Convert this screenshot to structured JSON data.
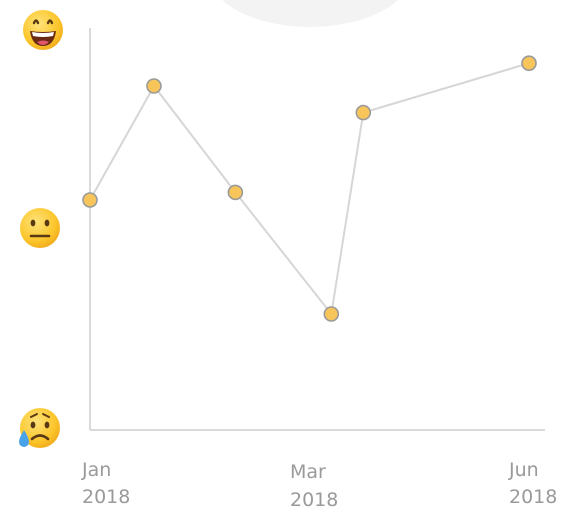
{
  "chart_data": {
    "type": "line",
    "title": "",
    "xlabel": "",
    "ylabel": "",
    "y_scale": "mood",
    "ylim": [
      0,
      1
    ],
    "y_ticks": [
      {
        "value": 1.0,
        "icon": "grinning-face-icon"
      },
      {
        "value": 0.5,
        "icon": "neutral-face-icon"
      },
      {
        "value": 0.0,
        "icon": "sad-sweat-face-icon"
      }
    ],
    "x_ticks": [
      {
        "date": "2018-01-01",
        "month": "Jan",
        "year": "2018"
      },
      {
        "date": "2018-03-01",
        "month": "Mar",
        "year": "2018"
      },
      {
        "date": "2018-06-01",
        "month": "Jun",
        "year": "2018"
      }
    ],
    "xlim": [
      "2018-01-01",
      "2018-06-01"
    ],
    "points": [
      {
        "x": "2018-01-01",
        "y": 0.6
      },
      {
        "x": "2018-01-23",
        "y": 0.9
      },
      {
        "x": "2018-02-20",
        "y": 0.62
      },
      {
        "x": "2018-03-25",
        "y": 0.3
      },
      {
        "x": "2018-04-05",
        "y": 0.83
      },
      {
        "x": "2018-06-01",
        "y": 0.96
      }
    ],
    "colors": {
      "line": "#d6d6d6",
      "point_fill": "#f7c55a",
      "point_stroke": "#9a9a9a",
      "axis": "#d9d9d9",
      "tick_text": "#9a9a9a"
    }
  }
}
